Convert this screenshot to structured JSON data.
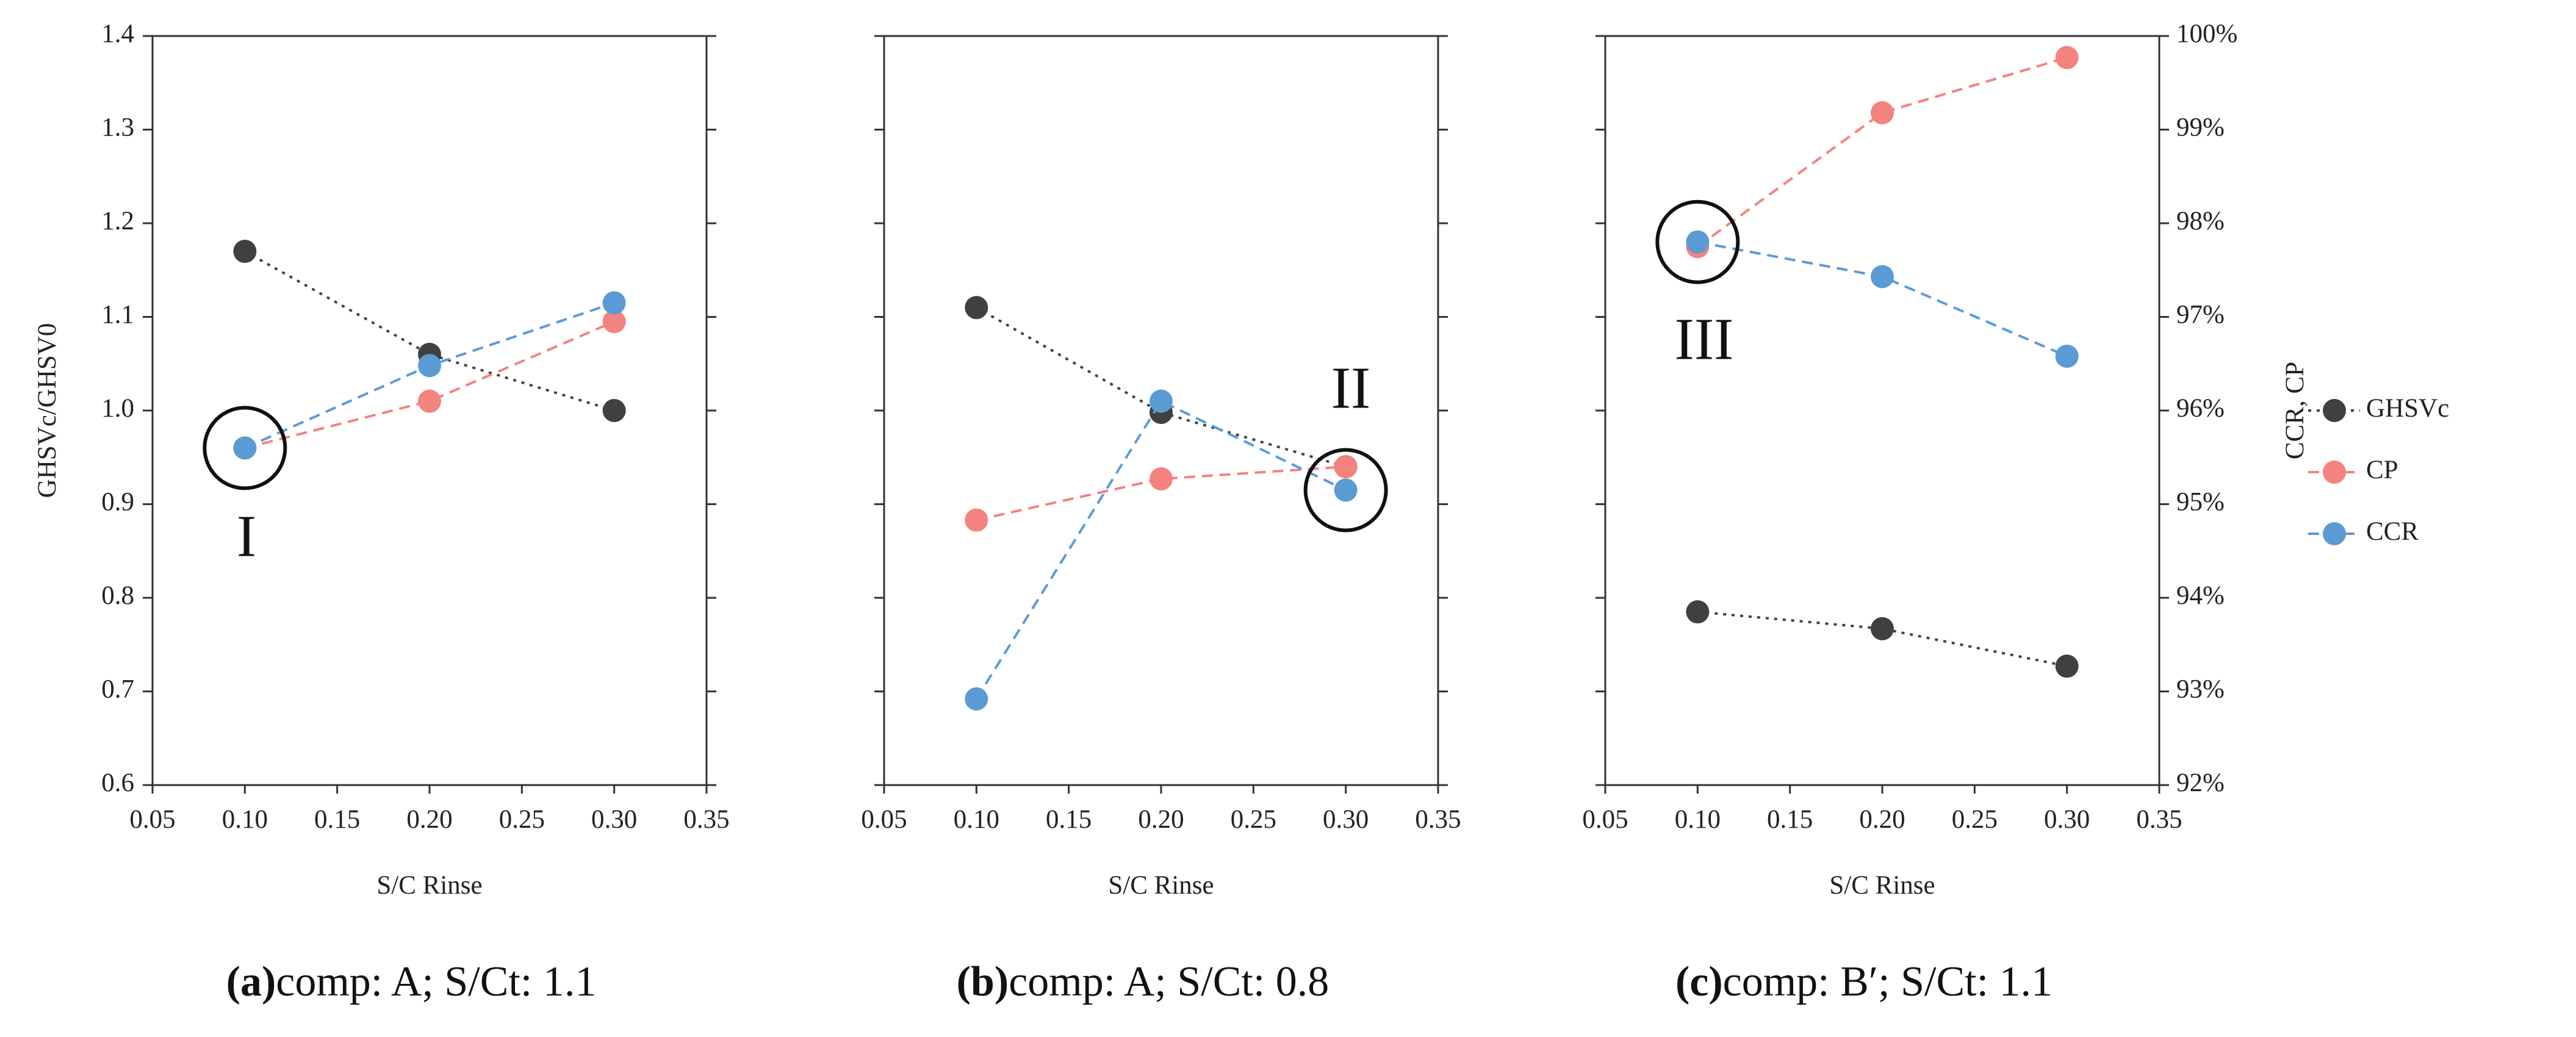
{
  "chart_data": [
    {
      "type": "line",
      "x": [
        0.1,
        0.2,
        0.3
      ],
      "series": [
        {
          "color": "#404040",
          "values": [
            1.17,
            1.06,
            1.0
          ]
        },
        {
          "color": "#f4827f",
          "axis": "y2",
          "values": [
            95.6,
            96.1,
            96.95
          ]
        },
        {
          "color": "#5b9bd5",
          "axis": "y2",
          "values": [
            95.6,
            96.48,
            97.15
          ]
        }
      ],
      "xlim": [
        0.05,
        0.35
      ],
      "xticks": [
        0.05,
        {
          "value": 0.1,
          "label": "0.10"
        },
        0.15,
        {
          "value": 0.2,
          "label": "0.20"
        },
        0.25,
        {
          "value": 0.3,
          "label": "0.30"
        },
        0.35
      ],
      "ylim": [
        0.6,
        1.4
      ],
      "yticks": [
        {
          "value": 0.6,
          "label": "0.6"
        },
        {
          "value": 0.7,
          "label": "0.7"
        },
        {
          "value": 0.8,
          "label": "0.8"
        },
        {
          "value": 0.9,
          "label": "0.9"
        },
        {
          "value": 1.0,
          "label": "1.0"
        },
        {
          "value": 1.1,
          "label": "1.1"
        },
        {
          "value": 1.2,
          "label": "1.2"
        },
        {
          "value": 1.3,
          "label": "1.3"
        },
        {
          "value": 1.4,
          "label": "1.4"
        }
      ],
      "y2lim": [
        92,
        100
      ],
      "xlabel": "S/C Rinse",
      "ylabel": "GHSVc/GHSV0",
      "annotation": "I",
      "caption_label": "(a)",
      "caption": "comp: A; S/Ct: 1.1"
    },
    {
      "type": "line",
      "x": [
        0.1,
        0.2,
        0.3
      ],
      "series": [
        {
          "color": "#404040",
          "values": [
            1.11,
            0.998,
            0.94
          ]
        },
        {
          "color": "#f4827f",
          "axis": "y2",
          "values": [
            94.83,
            95.27,
            95.4
          ]
        },
        {
          "color": "#5b9bd5",
          "axis": "y2",
          "values": [
            92.92,
            96.1,
            95.15
          ]
        }
      ],
      "xlim": [
        0.05,
        0.35
      ],
      "xticks": [
        0.05,
        {
          "value": 0.1,
          "label": "0.10"
        },
        0.15,
        {
          "value": 0.2,
          "label": "0.20"
        },
        0.25,
        {
          "value": 0.3,
          "label": "0.30"
        },
        0.35
      ],
      "ylim": [
        0.6,
        1.4
      ],
      "y2lim": [
        92,
        100
      ],
      "xlabel": "S/C Rinse",
      "annotation": "II",
      "caption_label": "(b)",
      "caption": "comp: A; S/Ct: 0.8"
    },
    {
      "type": "line",
      "x": [
        0.1,
        0.2,
        0.3
      ],
      "series": [
        {
          "name": "GHSVc",
          "color": "#404040",
          "values": [
            0.785,
            0.767,
            0.727
          ]
        },
        {
          "name": "CP",
          "color": "#f4827f",
          "axis": "y2",
          "values": [
            97.75,
            99.18,
            99.77
          ]
        },
        {
          "name": "CCR",
          "color": "#5b9bd5",
          "axis": "y2",
          "values": [
            97.8,
            97.43,
            96.58
          ]
        }
      ],
      "xlim": [
        0.05,
        0.35
      ],
      "xticks": [
        0.05,
        {
          "value": 0.1,
          "label": "0.10"
        },
        0.15,
        {
          "value": 0.2,
          "label": "0.20"
        },
        0.25,
        {
          "value": 0.3,
          "label": "0.30"
        },
        0.35
      ],
      "ylim": [
        0.6,
        1.4
      ],
      "y2lim": [
        92,
        100
      ],
      "y2ticks": [
        {
          "value": 92,
          "label": "92%"
        },
        {
          "value": 93,
          "label": "93%"
        },
        {
          "value": 94,
          "label": "94%"
        },
        {
          "value": 95,
          "label": "95%"
        },
        {
          "value": 96,
          "label": "96%"
        },
        {
          "value": 97,
          "label": "97%"
        },
        {
          "value": 98,
          "label": "98%"
        },
        {
          "value": 99,
          "label": "99%"
        },
        {
          "value": 100,
          "label": "100%"
        }
      ],
      "xlabel": "S/C Rinse",
      "y2label": "CCR, CP",
      "legend": "right",
      "annotation": "III",
      "caption_label": "(c)",
      "caption": "comp: B′; S/Ct: 1.1"
    }
  ]
}
